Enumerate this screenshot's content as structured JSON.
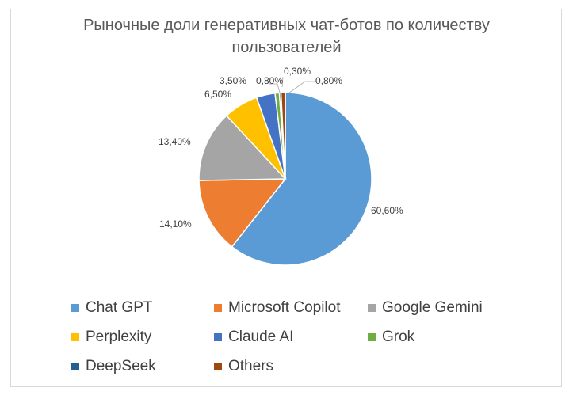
{
  "chart_data": {
    "type": "pie",
    "title": "Рыночные доли генеративных чат-ботов по количеству пользователей",
    "title_lines": [
      "Рыночные доли генеративных чат-ботов по количеству",
      "пользователей"
    ],
    "legend_position": "bottom",
    "slices": [
      {
        "label": "Chat GPT",
        "value": 60.6,
        "display": "60,60%",
        "color": "#5b9bd5"
      },
      {
        "label": "Microsoft Copilot",
        "value": 14.1,
        "display": "14,10%",
        "color": "#ed7d31"
      },
      {
        "label": "Google Gemini",
        "value": 13.4,
        "display": "13,40%",
        "color": "#a5a5a5"
      },
      {
        "label": "Perplexity",
        "value": 6.5,
        "display": "6,50%",
        "color": "#ffc000"
      },
      {
        "label": "Claude AI",
        "value": 3.5,
        "display": "3,50%",
        "color": "#4472c4"
      },
      {
        "label": "Grok",
        "value": 0.8,
        "display": "0,80%",
        "color": "#70ad47"
      },
      {
        "label": "DeepSeek",
        "value": 0.3,
        "display": "0,30%",
        "color": "#255e91"
      },
      {
        "label": "Others",
        "value": 0.8,
        "display": "0,80%",
        "color": "#9e480e"
      }
    ]
  }
}
